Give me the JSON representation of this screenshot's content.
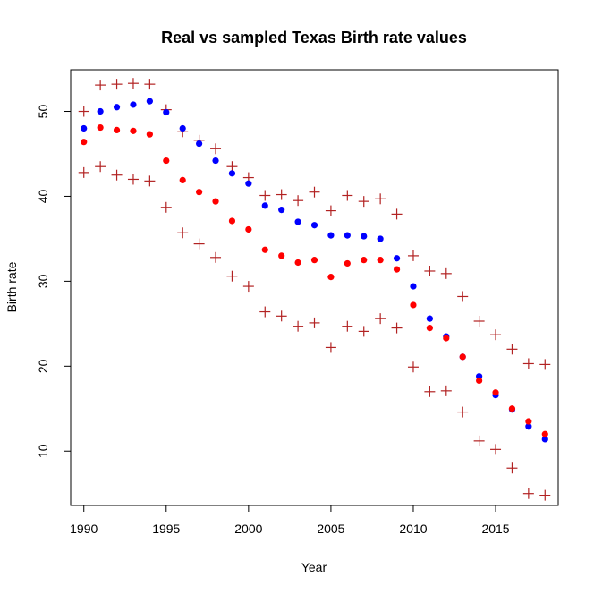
{
  "chart_data": {
    "type": "scatter",
    "title": "Real vs sampled Texas Birth rate values",
    "xlabel": "Year",
    "ylabel": "Birth rate",
    "xlim": [
      1989.2,
      2018.8
    ],
    "ylim": [
      3.6,
      54.9
    ],
    "xticks": [
      1990,
      1995,
      2000,
      2005,
      2010,
      2015
    ],
    "yticks": [
      10,
      20,
      30,
      40,
      50
    ],
    "grid": false,
    "legend": "none",
    "x": [
      1990,
      1991,
      1992,
      1993,
      1994,
      1995,
      1996,
      1997,
      1998,
      1999,
      2000,
      2001,
      2002,
      2003,
      2004,
      2005,
      2006,
      2007,
      2008,
      2009,
      2010,
      2011,
      2012,
      2013,
      2014,
      2015,
      2016,
      2017,
      2018
    ],
    "series": [
      {
        "marker": "filled-circle",
        "color": "#0000ff",
        "values": [
          48.0,
          50.0,
          50.5,
          50.8,
          51.2,
          49.9,
          48.0,
          46.2,
          44.2,
          42.7,
          41.5,
          38.9,
          38.4,
          37.0,
          36.6,
          35.4,
          35.4,
          35.3,
          35.0,
          32.7,
          29.4,
          25.6,
          23.5,
          21.1,
          18.8,
          16.6,
          14.9,
          12.9,
          11.4
        ]
      },
      {
        "marker": "filled-circle",
        "color": "#ff0000",
        "values": [
          46.4,
          48.1,
          47.8,
          47.7,
          47.3,
          44.2,
          41.9,
          40.5,
          39.4,
          37.1,
          36.1,
          33.7,
          33.0,
          32.2,
          32.5,
          30.5,
          32.1,
          32.5,
          32.5,
          31.4,
          27.2,
          24.5,
          23.3,
          21.1,
          18.3,
          16.9,
          15.0,
          13.5,
          12.0
        ]
      },
      {
        "marker": "plus",
        "color": "#b22222",
        "values": [
          50.0,
          53.1,
          53.2,
          53.3,
          53.2,
          50.2,
          47.6,
          46.6,
          45.6,
          43.5,
          42.2,
          40.1,
          40.2,
          39.5,
          40.5,
          38.3,
          40.1,
          39.4,
          39.7,
          37.9,
          33.0,
          31.2,
          30.9,
          28.2,
          25.3,
          23.7,
          22.0,
          20.3,
          20.2
        ]
      },
      {
        "marker": "plus",
        "color": "#b22222",
        "values": [
          42.8,
          43.5,
          42.5,
          42.0,
          41.8,
          38.7,
          35.7,
          34.4,
          32.8,
          30.6,
          29.4,
          26.4,
          25.9,
          24.7,
          25.1,
          22.2,
          24.7,
          24.1,
          25.6,
          24.5,
          19.9,
          17.0,
          17.1,
          14.6,
          11.2,
          10.2,
          8.0,
          5.0,
          4.8
        ]
      }
    ]
  }
}
